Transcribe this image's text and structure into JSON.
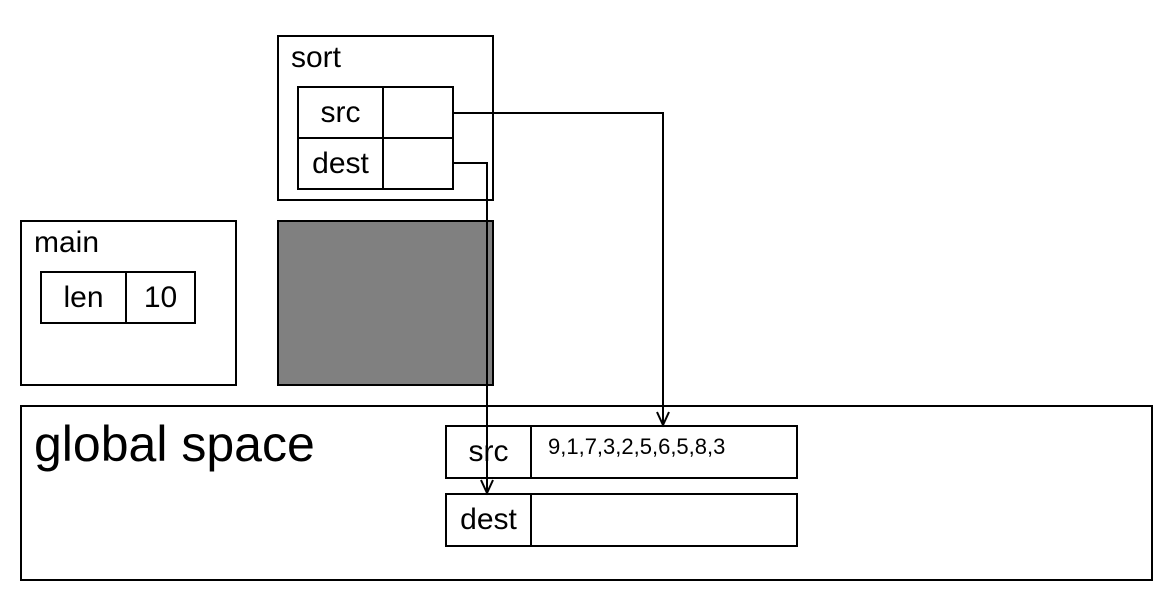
{
  "sort_frame": {
    "title": "sort",
    "src_label": "src",
    "dest_label": "dest"
  },
  "main_frame": {
    "title": "main",
    "len_label": "len",
    "len_value": "10"
  },
  "global_space": {
    "title": "global space",
    "src_label": "src",
    "src_value": "9,1,7,3,2,5,6,5,8,3",
    "dest_label": "dest",
    "dest_value": ""
  },
  "colors": {
    "blocked_region": "#808080",
    "stroke": "#000000"
  }
}
